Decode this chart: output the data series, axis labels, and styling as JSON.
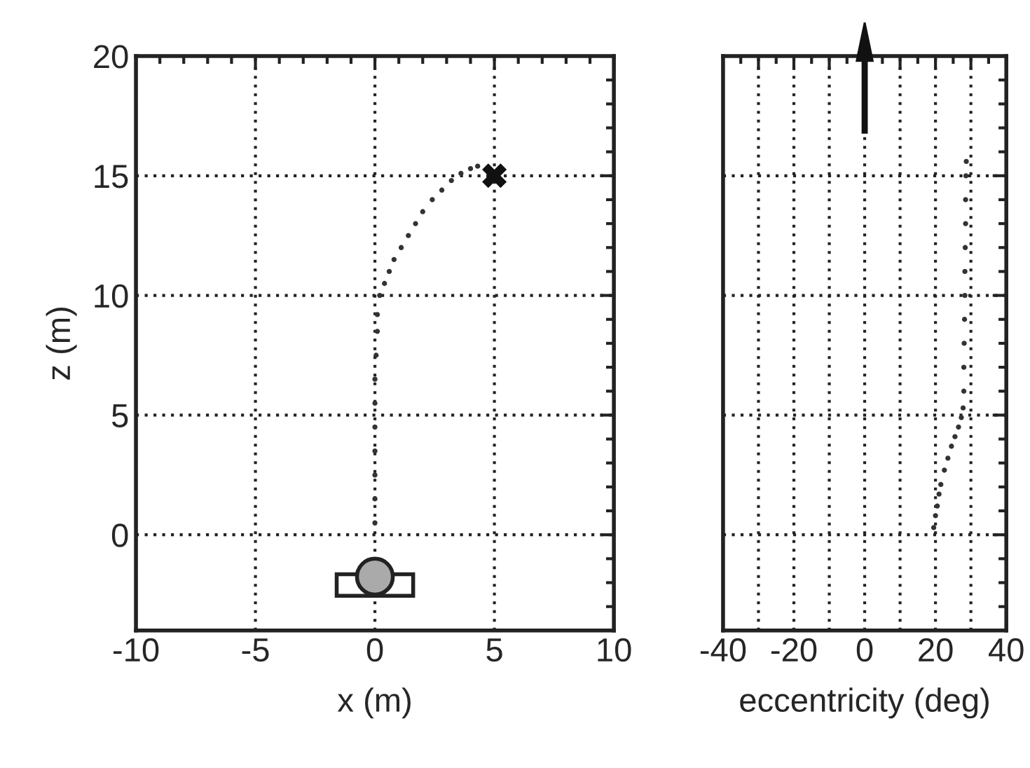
{
  "chart_data": [
    {
      "type": "scatter",
      "xlabel": "x (m)",
      "ylabel": "z (m)",
      "xlim": [
        -10,
        10
      ],
      "ylim": [
        -4,
        20
      ],
      "xticks": [
        -10,
        -5,
        0,
        5,
        10
      ],
      "yticks": [
        0,
        5,
        10,
        15,
        20
      ],
      "grid": true,
      "series": [
        {
          "color": "#333333",
          "marker": "circle",
          "x": [
            0,
            0,
            0,
            0,
            0,
            0,
            0,
            0.05,
            0.1,
            0.1,
            0.2,
            0.4,
            0.6,
            0.8,
            1.1,
            1.4,
            1.7,
            2.0,
            2.4,
            2.8,
            3.2,
            3.6,
            4.0,
            4.3
          ],
          "values": [
            0.5,
            1.5,
            2.5,
            3.5,
            4.5,
            5.5,
            6.5,
            7.5,
            8.5,
            9.2,
            10,
            10.5,
            11,
            11.5,
            12,
            12.5,
            13,
            13.5,
            14,
            14.4,
            14.8,
            15.1,
            15.3,
            15.4
          ]
        },
        {
          "color": "#111111",
          "marker": "cross",
          "x": [
            5
          ],
          "values": [
            15
          ]
        }
      ]
    },
    {
      "type": "scatter",
      "xlabel": "eccentricity (deg)",
      "xlim": [
        -40,
        40
      ],
      "ylim": [
        -4,
        20
      ],
      "xticks": [
        -40,
        {
          "value": -30,
          "label": null
        },
        -20,
        {
          "value": -10,
          "label": null
        },
        0,
        {
          "value": 10,
          "label": null
        },
        20,
        {
          "value": 30,
          "label": null
        },
        40
      ],
      "yticks": [
        {
          "value": 0,
          "label": null
        },
        {
          "value": 5,
          "label": null
        },
        {
          "value": 10,
          "label": null
        },
        {
          "value": 15,
          "label": null
        },
        {
          "value": 20,
          "label": null
        }
      ],
      "tick_labels": "x",
      "grid": true,
      "series": [
        {
          "color": "#333333",
          "marker": "circle",
          "x": [
            19.5,
            20,
            20.5,
            21,
            21.5,
            22.5,
            23.5,
            24.5,
            25.5,
            26.5,
            27.3,
            27.8,
            28,
            28,
            28.1,
            28.2,
            28.3,
            28.3,
            28.4,
            28.5,
            28.5,
            28.6,
            28.7
          ],
          "values": [
            0.3,
            0.8,
            1.2,
            1.7,
            2.1,
            2.7,
            3.2,
            3.7,
            4.1,
            4.5,
            4.9,
            5.3,
            6,
            7,
            8,
            9,
            10,
            11,
            12,
            13,
            14,
            15,
            15.6
          ]
        }
      ]
    }
  ]
}
